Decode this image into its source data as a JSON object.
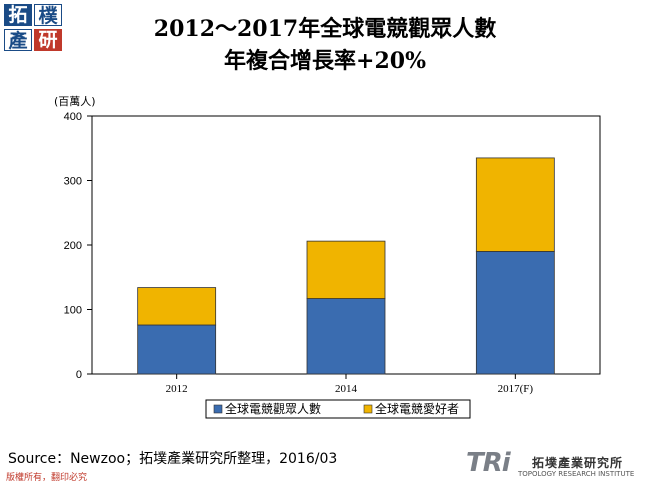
{
  "logo": {
    "chars": [
      "拓",
      "樸",
      "產",
      "研"
    ]
  },
  "title_line1": "2012～2017年全球電競觀眾人數",
  "title_line2": "年複合增長率+20%",
  "chart_data": {
    "type": "bar",
    "stacked": true,
    "unit_label": "(百萬人)",
    "categories": [
      "2012",
      "2014",
      "2017(F)"
    ],
    "series": [
      {
        "name": "全球電競觀眾人數",
        "values": [
          76,
          117,
          190
        ],
        "color": "#3a6cb0"
      },
      {
        "name": "全球電競愛好者",
        "values": [
          58,
          89,
          145
        ],
        "color": "#f0b400"
      }
    ],
    "ylim": [
      0,
      400
    ],
    "yticks": [
      0,
      100,
      200,
      300,
      400
    ],
    "grid": false,
    "legend": "bottom"
  },
  "source": "Source：Newzoo；拓墣產業研究所整理，2016/03",
  "rights": "版權所有，翻印必究",
  "footer_logo": {
    "mark": "TRi",
    "name": "拓墣產業研究所",
    "english": "TOPOLOGY RESEARCH INSTITUTE"
  }
}
